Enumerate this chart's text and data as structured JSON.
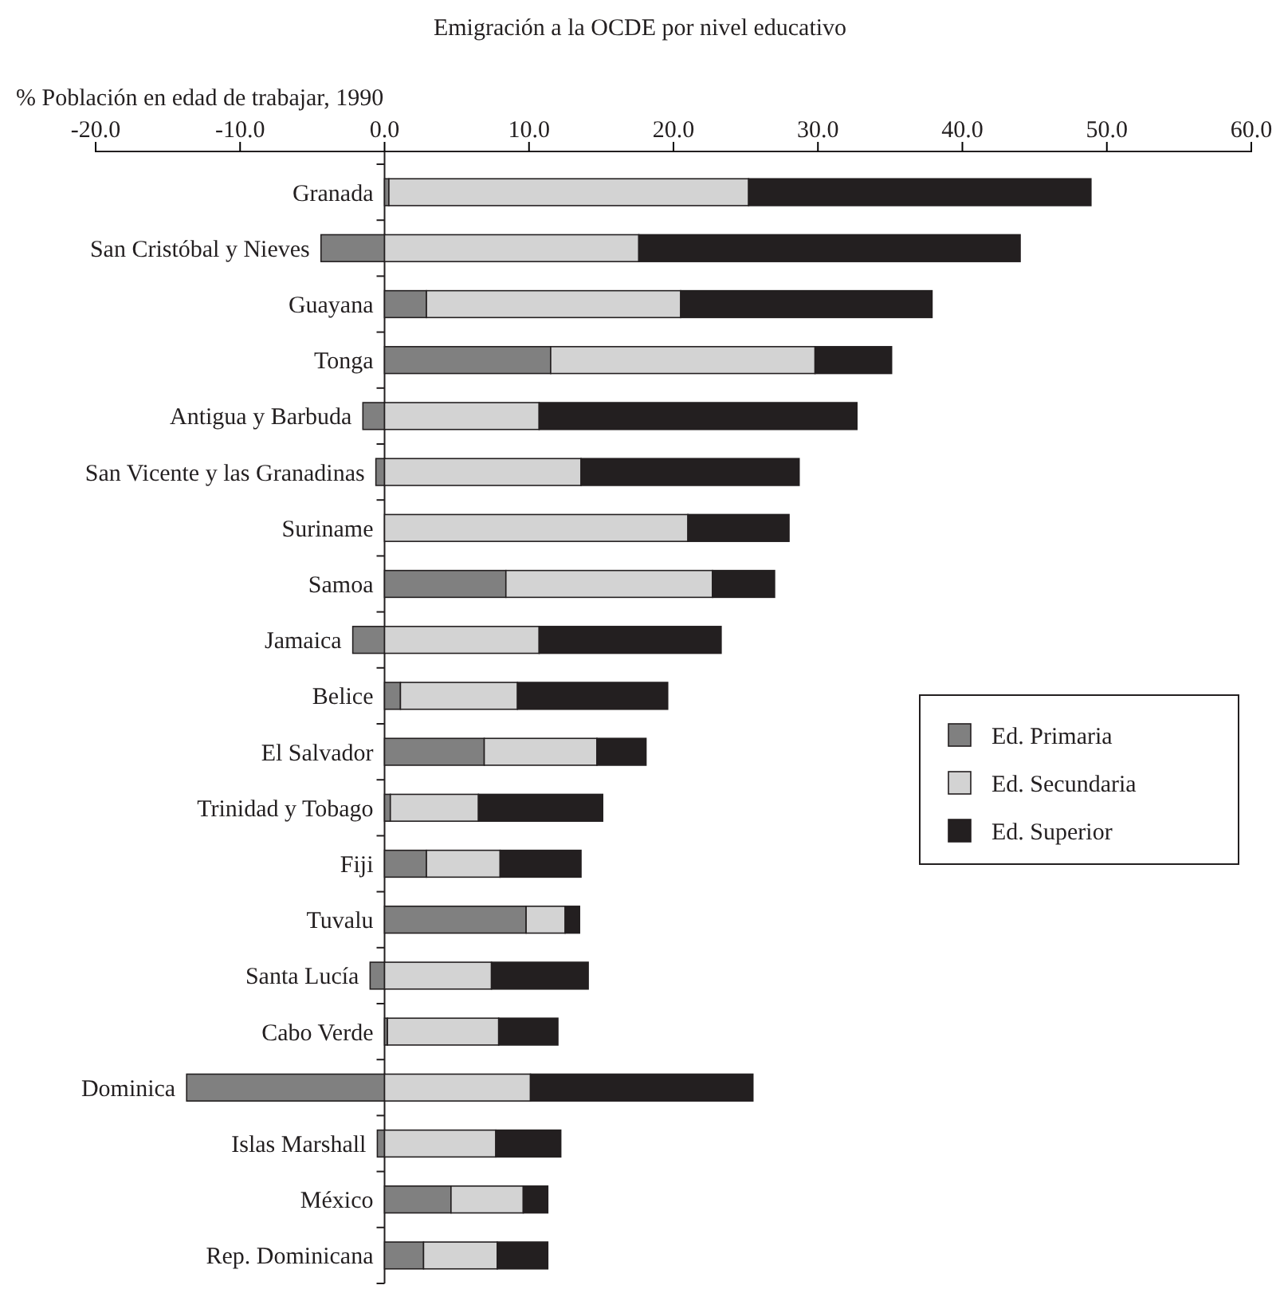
{
  "chart_data": {
    "type": "bar",
    "orientation": "horizontal",
    "stacked": true,
    "title": "Emigración a la OCDE por nivel educativo",
    "xlabel": "% Población en edad de trabajar, 1990",
    "categories": [
      "Granada",
      "San Cristóbal y Nieves",
      "Guayana",
      "Tonga",
      "Antigua y Barbuda",
      "San Vicente y las Granadinas",
      "Suriname",
      "Samoa",
      "Jamaica",
      "Belice",
      "El Salvador",
      "Trinidad y Tobago",
      "Fiji",
      "Tuvalu",
      "Santa Lucía",
      "Cabo Verde",
      "Dominica",
      "Islas Marshall",
      "México",
      "Rep. Dominicana"
    ],
    "series": [
      {
        "name": "Ed. Primaria",
        "color": "#808080",
        "values": [
          0.3,
          -4.4,
          2.9,
          11.5,
          -1.5,
          -0.6,
          0,
          8.4,
          -2.2,
          1.1,
          6.9,
          0.4,
          2.9,
          9.8,
          -1.0,
          0.2,
          -13.7,
          -0.5,
          4.6,
          2.7
        ]
      },
      {
        "name": "Ed. Secundaria",
        "color": "#d3d3d3",
        "values": [
          24.9,
          17.6,
          17.6,
          18.3,
          10.7,
          13.6,
          21.0,
          14.3,
          10.7,
          8.1,
          7.8,
          6.1,
          5.1,
          2.7,
          7.4,
          7.7,
          10.1,
          7.7,
          5.0,
          5.1
        ]
      },
      {
        "name": "Ed. Superior",
        "color": "#231f20",
        "values": [
          23.7,
          26.4,
          17.4,
          5.3,
          22.0,
          15.1,
          7.0,
          4.3,
          12.6,
          10.4,
          3.4,
          8.6,
          5.6,
          1.0,
          6.7,
          4.1,
          15.4,
          4.5,
          1.7,
          3.5
        ]
      }
    ],
    "xlim": [
      -20,
      60
    ],
    "xticks": [
      {
        "value": -20,
        "label": "-20.0"
      },
      {
        "value": -10,
        "label": "-10.0"
      },
      {
        "value": 0,
        "label": "0.0"
      },
      {
        "value": 10,
        "label": "10.0"
      },
      {
        "value": 20,
        "label": "20.0"
      },
      {
        "value": 30,
        "label": "30.0"
      },
      {
        "value": 40,
        "label": "40.0"
      },
      {
        "value": 50,
        "label": "50.0"
      },
      {
        "value": 60,
        "label": "60.0"
      }
    ],
    "legend": "right",
    "grid": false
  }
}
